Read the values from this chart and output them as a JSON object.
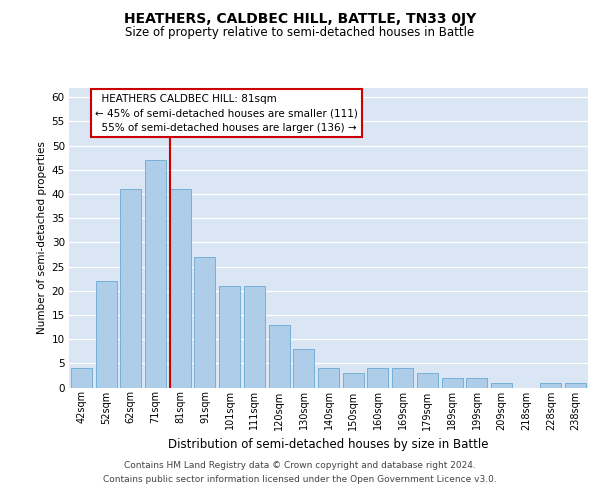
{
  "title": "HEATHERS, CALDBEC HILL, BATTLE, TN33 0JY",
  "subtitle": "Size of property relative to semi-detached houses in Battle",
  "xlabel": "Distribution of semi-detached houses by size in Battle",
  "ylabel": "Number of semi-detached properties",
  "categories": [
    "42sqm",
    "52sqm",
    "62sqm",
    "71sqm",
    "81sqm",
    "91sqm",
    "101sqm",
    "111sqm",
    "120sqm",
    "130sqm",
    "140sqm",
    "150sqm",
    "160sqm",
    "169sqm",
    "179sqm",
    "189sqm",
    "199sqm",
    "209sqm",
    "218sqm",
    "228sqm",
    "238sqm"
  ],
  "values": [
    4,
    22,
    41,
    47,
    41,
    27,
    21,
    21,
    13,
    8,
    4,
    3,
    4,
    4,
    3,
    2,
    2,
    1,
    0,
    1,
    1
  ],
  "bar_color": "#aecde8",
  "bar_edge_color": "#6aaad4",
  "highlight_index": 4,
  "highlight_label": "HEATHERS CALDBEC HILL: 81sqm",
  "pct_smaller": 45,
  "pct_larger": 55,
  "n_smaller": 111,
  "n_larger": 136,
  "vline_color": "#cc0000",
  "ann_box_color": "#cc0000",
  "ylim_max": 62,
  "yticks": [
    0,
    5,
    10,
    15,
    20,
    25,
    30,
    35,
    40,
    45,
    50,
    55,
    60
  ],
  "plot_bg_color": "#dae6f3",
  "footer1": "Contains HM Land Registry data © Crown copyright and database right 2024.",
  "footer2": "Contains public sector information licensed under the Open Government Licence v3.0."
}
